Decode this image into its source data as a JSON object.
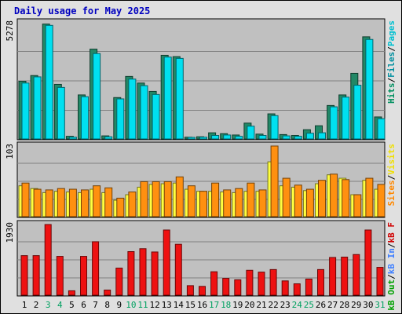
{
  "chart_data": [
    {
      "type": "bar",
      "title": "Daily usage for May 2025",
      "ymax_label": "5278",
      "ylim": [
        0,
        5278
      ],
      "legend": [
        {
          "label": "Pages",
          "color": "#00c0d0"
        },
        {
          "label": "Files",
          "color": "#0090a0"
        },
        {
          "label": "Hits",
          "color": "#009060"
        }
      ],
      "legend_separator": "/",
      "categories": [
        "1",
        "2",
        "3",
        "4",
        "5",
        "6",
        "7",
        "8",
        "9",
        "10",
        "11",
        "12",
        "13",
        "14",
        "15",
        "16",
        "17",
        "18",
        "19",
        "20",
        "21",
        "22",
        "23",
        "24",
        "25",
        "26",
        "27",
        "28",
        "29",
        "30",
        "31"
      ],
      "series": [
        {
          "name": "Hits",
          "color": "#228866",
          "values": [
            2620,
            2880,
            5220,
            2480,
            120,
            2000,
            4080,
            140,
            1880,
            2840,
            2540,
            2160,
            3800,
            3740,
            80,
            100,
            280,
            240,
            180,
            720,
            220,
            1140,
            200,
            160,
            420,
            600,
            1520,
            2000,
            2980,
            4640,
            1000
          ]
        },
        {
          "name": "Pages",
          "color": "#00e0f0",
          "values": [
            2540,
            2820,
            5160,
            2340,
            80,
            1920,
            3880,
            100,
            1820,
            2720,
            2420,
            2020,
            3720,
            3660,
            60,
            80,
            160,
            180,
            120,
            580,
            160,
            1060,
            140,
            120,
            260,
            280,
            1460,
            1900,
            2440,
            4520,
            920
          ]
        }
      ]
    },
    {
      "type": "bar",
      "ymax_label": "103",
      "ylim": [
        0,
        103
      ],
      "legend": [
        {
          "label": "Visits",
          "color": "#f0e000"
        },
        {
          "label": "Sites",
          "color": "#ff8800"
        }
      ],
      "legend_separator": "/",
      "categories": [
        "1",
        "2",
        "3",
        "4",
        "5",
        "6",
        "7",
        "8",
        "9",
        "10",
        "11",
        "12",
        "13",
        "14",
        "15",
        "16",
        "17",
        "18",
        "19",
        "20",
        "21",
        "22",
        "23",
        "24",
        "25",
        "26",
        "27",
        "28",
        "29",
        "30",
        "31"
      ],
      "series": [
        {
          "name": "Visits",
          "color": "#ffff40",
          "values": [
            45,
            41,
            35,
            37,
            36,
            35,
            40,
            35,
            24,
            32,
            43,
            47,
            48,
            49,
            40,
            37,
            37,
            36,
            35,
            37,
            37,
            80,
            45,
            43,
            38,
            48,
            61,
            56,
            32,
            53,
            40
          ]
        },
        {
          "name": "Sites",
          "color": "#ff9010",
          "values": [
            49,
            40,
            39,
            41,
            40,
            39,
            45,
            42,
            27,
            36,
            51,
            51,
            51,
            58,
            45,
            37,
            49,
            39,
            41,
            49,
            39,
            103,
            56,
            46,
            40,
            53,
            62,
            54,
            32,
            56,
            47
          ]
        }
      ]
    },
    {
      "type": "bar",
      "ymax_label": "1930",
      "ylim": [
        0,
        1930
      ],
      "legend": [
        {
          "label": "kB F",
          "color": "#d00000"
        },
        {
          "label": "kB In",
          "color": "#4080ff"
        },
        {
          "label": "kB Out",
          "color": "#00a000"
        }
      ],
      "legend_separator": "/",
      "categories": [
        "1",
        "2",
        "3",
        "4",
        "5",
        "6",
        "7",
        "8",
        "9",
        "10",
        "11",
        "12",
        "13",
        "14",
        "15",
        "16",
        "17",
        "18",
        "19",
        "20",
        "21",
        "22",
        "23",
        "24",
        "25",
        "26",
        "27",
        "28",
        "29",
        "30",
        "31"
      ],
      "series": [
        {
          "name": "kB F",
          "color": "#ee1111",
          "values": [
            1080,
            1080,
            1930,
            1060,
            120,
            1060,
            1460,
            140,
            740,
            1190,
            1270,
            1180,
            1780,
            1390,
            260,
            240,
            640,
            460,
            420,
            680,
            630,
            700,
            390,
            310,
            440,
            700,
            1030,
            1040,
            1110,
            1780,
            760
          ]
        }
      ]
    }
  ],
  "x_labels": [
    "1",
    "2",
    "3",
    "4",
    "5",
    "6",
    "7",
    "8",
    "9",
    "10",
    "11",
    "12",
    "13",
    "14",
    "15",
    "16",
    "17",
    "18",
    "19",
    "20",
    "21",
    "22",
    "23",
    "24",
    "25",
    "26",
    "27",
    "28",
    "29",
    "30",
    "31"
  ],
  "weekend_days": [
    3,
    4,
    10,
    11,
    17,
    18,
    24,
    25,
    31
  ],
  "colors": {
    "panel_bg": "#c0c0c0",
    "grid": "#808080",
    "weekday_label": "#000000",
    "weekend_label": "#00a060"
  }
}
